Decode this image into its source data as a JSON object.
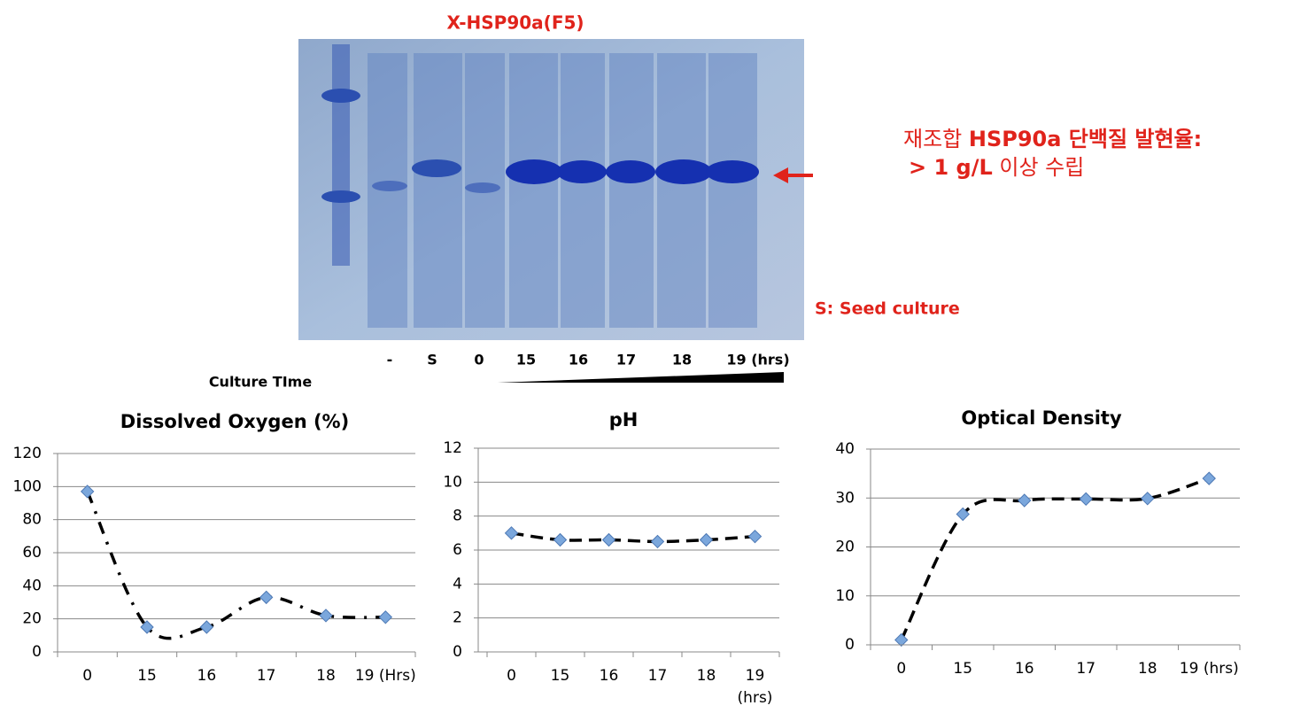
{
  "gel": {
    "title": "X-HSP90a(F5)",
    "lanes": [
      "-",
      "S",
      "0",
      "15",
      "16",
      "17",
      "18",
      "19 (hrs)"
    ],
    "axis_label": "Culture TIme",
    "note": "S: Seed culture",
    "annotation": [
      [
        {
          "text": "재조합 ",
          "bold": false
        },
        {
          "text": "HSP90a",
          "bold": true
        },
        {
          "text": " 단백질 발현율:",
          "bold": true
        }
      ],
      [
        {
          "text": "> 1 g/L",
          "bold": true
        },
        {
          "text": " 이상 수립",
          "bold": false
        }
      ]
    ]
  },
  "chart_data": [
    {
      "type": "line",
      "title": "Dissolved Oxygen (%)",
      "categories": [
        "0",
        "15",
        "16",
        "17",
        "18",
        "19 (Hrs)"
      ],
      "values": [
        97,
        15,
        15,
        33,
        22,
        21
      ],
      "color": "#000000",
      "marker_color": "#7ba7dc",
      "ylim": [
        0,
        120
      ],
      "yticks": [
        0,
        20,
        40,
        60,
        80,
        100,
        120
      ],
      "grid": true
    },
    {
      "type": "line",
      "title": "pH",
      "categories": [
        "0",
        "15",
        "16",
        "17",
        "18",
        "19"
      ],
      "x_unit": "(hrs)",
      "values": [
        7,
        6.6,
        6.6,
        6.5,
        6.6,
        6.8
      ],
      "color": "#000000",
      "marker_color": "#7ba7dc",
      "ylim": [
        0,
        12
      ],
      "yticks": [
        0,
        2,
        4,
        6,
        8,
        10,
        12
      ],
      "grid": true
    },
    {
      "type": "line",
      "title": "Optical Density",
      "categories": [
        "0",
        "15",
        "16",
        "17",
        "18",
        "19 (hrs)"
      ],
      "values": [
        1,
        26.7,
        29.5,
        29.8,
        29.9,
        34
      ],
      "color": "#000000",
      "marker_color": "#7ba7dc",
      "ylim": [
        0,
        40
      ],
      "yticks": [
        0,
        10,
        20,
        30,
        40
      ],
      "grid": true
    }
  ]
}
